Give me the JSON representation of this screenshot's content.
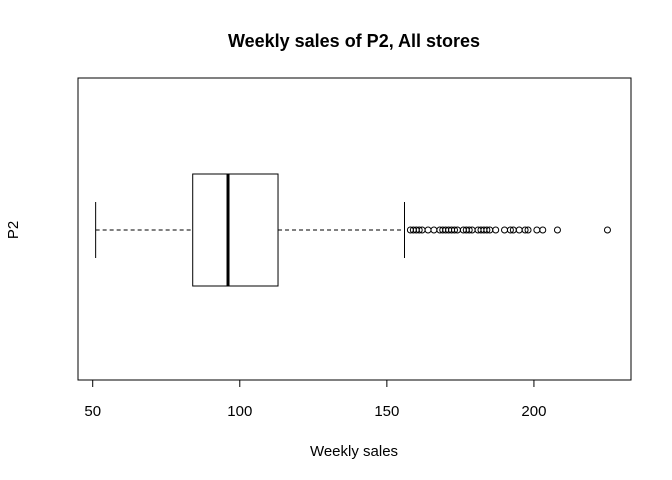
{
  "chart_data": {
    "type": "boxplot",
    "orientation": "horizontal",
    "title": "Weekly sales of P2, All stores",
    "xlabel": "Weekly sales",
    "ylabel": "P2",
    "xlim": [
      45,
      233
    ],
    "x_ticks": [
      50,
      100,
      150,
      200
    ],
    "x_tick_labels": [
      "50",
      "100",
      "150",
      "200"
    ],
    "grid": false,
    "series": [
      {
        "whisker_low": 51,
        "q1": 84,
        "median": 96,
        "q3": 113,
        "whisker_high": 156,
        "outliers": [
          158,
          159,
          160,
          161,
          162,
          164,
          166,
          168,
          169,
          170,
          171,
          172,
          173,
          174,
          176,
          177,
          178,
          179,
          181,
          182,
          183,
          184,
          185,
          187,
          190,
          192,
          193,
          195,
          197,
          198,
          201,
          203,
          208,
          225
        ]
      }
    ]
  }
}
